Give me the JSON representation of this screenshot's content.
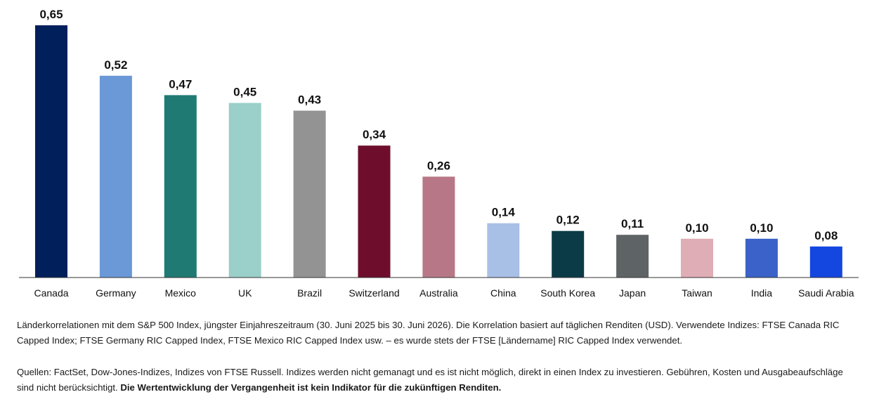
{
  "chart_data": {
    "type": "bar",
    "categories": [
      "Canada",
      "Germany",
      "Mexico",
      "UK",
      "Brazil",
      "Switzerland",
      "Australia",
      "China",
      "South Korea",
      "Japan",
      "Taiwan",
      "India",
      "Saudi Arabia"
    ],
    "values": [
      0.65,
      0.52,
      0.47,
      0.45,
      0.43,
      0.34,
      0.26,
      0.14,
      0.12,
      0.11,
      0.1,
      0.1,
      0.08
    ],
    "value_labels": [
      "0,65",
      "0,52",
      "0,47",
      "0,45",
      "0,43",
      "0,34",
      "0,26",
      "0,14",
      "0,12",
      "0,11",
      "0,10",
      "0,10",
      "0,08"
    ],
    "colors": [
      "#001f5b",
      "#6b98d6",
      "#1f7a73",
      "#9bcfc9",
      "#939393",
      "#6e0e2c",
      "#b87786",
      "#a9c0e6",
      "#0b3b47",
      "#5e6466",
      "#dfadb5",
      "#3a62c8",
      "#1446e0"
    ],
    "title": "",
    "xlabel": "",
    "ylabel": "",
    "ylim": [
      0,
      0.65
    ],
    "grid": false,
    "legend": "none"
  },
  "notes": {
    "correlation_note": "Länderkorrelationen mit dem S&P 500 Index, jüngster Einjahreszeitraum (30. Juni 2025 bis 30. Juni 2026). Die Korrelation basiert auf täglichen Renditen (USD). Verwendete Indizes: FTSE Canada RIC Capped Index; FTSE Germany RIC Capped Index, FTSE Mexico RIC Capped Index usw. – es wurde stets der FTSE [Ländername] RIC Capped Index verwendet.",
    "sources_text": "Quellen: FactSet, Dow-Jones-Indizes, Indizes von FTSE Russell. Indizes werden nicht gemanagt und es ist nicht möglich, direkt in einen Index zu investieren. Gebühren, Kosten und Ausgabeaufschläge sind nicht berücksichtigt.",
    "disclaimer_bold": "Die Wertentwicklung der Vergangenheit ist kein Indikator für die zukünftigen Renditen."
  }
}
